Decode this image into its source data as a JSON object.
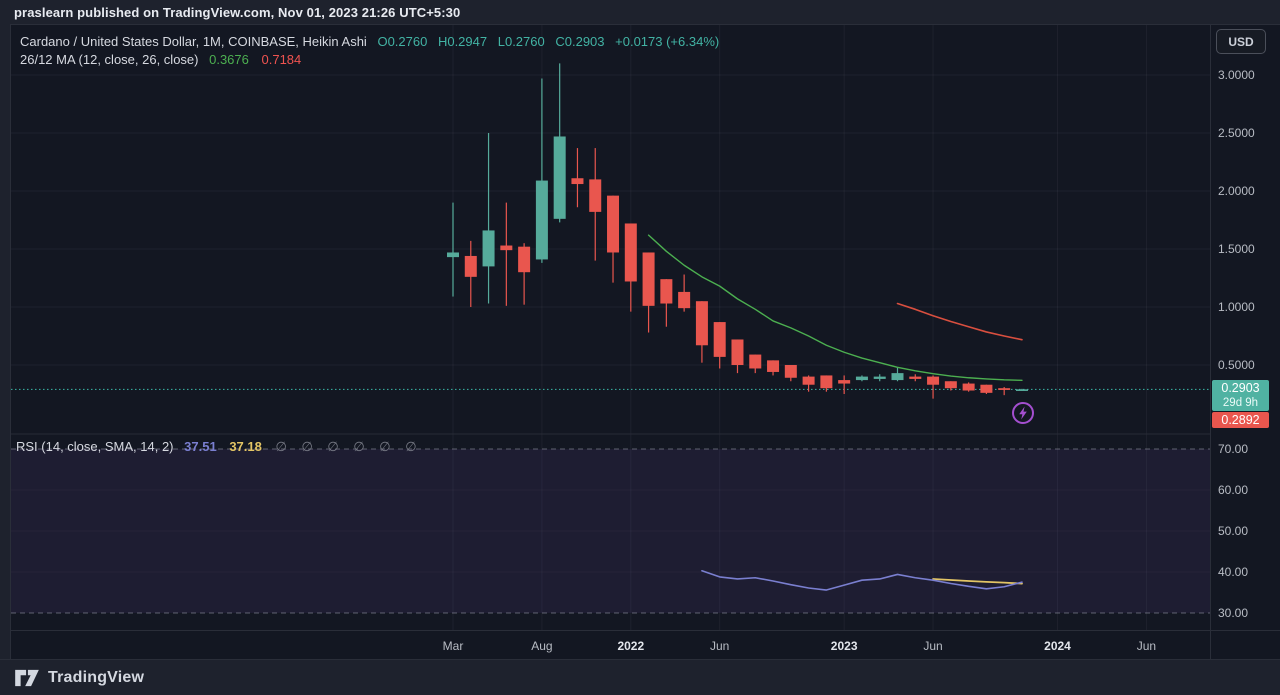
{
  "publish_bar": {
    "text": "praslearn published on TradingView.com, Nov 01, 2023 21:26 UTC+5:30"
  },
  "header": {
    "title": "Cardano / United States Dollar, 1M, COINBASE, Heikin Ashi",
    "ohlc": {
      "open": "O0.2760",
      "high": "H0.2947",
      "low": "L0.2760",
      "close": "C0.2903",
      "change": "+0.0173 (+6.34%)"
    },
    "ma_label": "26/12 MA (12, close, 26, close)",
    "ma_fast_value": "0.3676",
    "ma_slow_value": "0.7184"
  },
  "rsi_header": {
    "label": "RSI (14, close, SMA, 14, 2)",
    "value_main": "37.51",
    "value_signal": "37.18",
    "empty_values": [
      "∅",
      "∅",
      "∅",
      "∅",
      "∅",
      "∅"
    ]
  },
  "price_axis": {
    "currency_button": "USD",
    "ticks": [
      {
        "value": 3.0,
        "label": "3.0000"
      },
      {
        "value": 2.5,
        "label": "2.5000"
      },
      {
        "value": 2.0,
        "label": "2.0000"
      },
      {
        "value": 1.5,
        "label": "1.5000"
      },
      {
        "value": 1.0,
        "label": "1.0000"
      },
      {
        "value": 0.5,
        "label": "0.5000"
      }
    ],
    "last_price_badge": {
      "price": "0.2903",
      "countdown": "29d 9h"
    },
    "secondary_badge": "0.2892"
  },
  "rsi_axis": {
    "ticks": [
      {
        "value": 70,
        "label": "70.00"
      },
      {
        "value": 60,
        "label": "60.00"
      },
      {
        "value": 50,
        "label": "50.00"
      },
      {
        "value": 40,
        "label": "40.00"
      },
      {
        "value": 30,
        "label": "30.00"
      }
    ]
  },
  "footer": {
    "brand": "TradingView"
  },
  "colors": {
    "up": "#56ab9b",
    "down": "#e9564e",
    "ma_fast": "#4caf50",
    "ma_slow": "#d94f3f",
    "rsi": "#7a7fd0",
    "rsi_signal": "#e3c565",
    "price_line": "#3cb9a9",
    "grid": "rgba(240,243,250,0.05)",
    "dashed_level": "rgba(170,174,186,0.5)",
    "rsi_band_fill": "rgba(126,87,194,0.10)",
    "boost_purple": "#a44fd0"
  },
  "chart_data": {
    "type": "candlestick",
    "style": "Heikin Ashi",
    "interval": "1M",
    "title": "Cardano / United States Dollar, 1M, COINBASE, Heikin Ashi",
    "price_pane": {
      "yticks": [
        3.0,
        2.5,
        2.0,
        1.5,
        1.0,
        0.5
      ],
      "ylim_visible": [
        -0.05,
        3.22
      ],
      "last_price": 0.2903,
      "candles": [
        [
          "Mar 2021",
          1.43,
          1.9,
          1.09,
          1.47
        ],
        [
          "Apr 2021",
          1.44,
          1.57,
          1.0,
          1.26
        ],
        [
          "May 2021",
          1.35,
          2.5,
          1.03,
          1.66
        ],
        [
          "Jun 2021",
          1.53,
          1.9,
          1.01,
          1.49
        ],
        [
          "Jul 2021",
          1.52,
          1.55,
          1.02,
          1.3
        ],
        [
          "Aug 2021",
          1.41,
          2.97,
          1.38,
          2.09
        ],
        [
          "Sep 2021",
          1.76,
          3.1,
          1.73,
          2.47
        ],
        [
          "Oct 2021",
          2.11,
          2.37,
          1.86,
          2.06
        ],
        [
          "Nov 2021",
          2.1,
          2.37,
          1.4,
          1.82
        ],
        [
          "Dec 2021",
          1.96,
          1.96,
          1.21,
          1.47
        ],
        [
          "Jan 2022",
          1.72,
          1.72,
          0.96,
          1.22
        ],
        [
          "Feb 2022",
          1.47,
          1.47,
          0.78,
          1.01
        ],
        [
          "Mar 2022",
          1.24,
          1.24,
          0.83,
          1.03
        ],
        [
          "Apr 2022",
          1.13,
          1.28,
          0.96,
          0.99
        ],
        [
          "May 2022",
          1.05,
          1.05,
          0.52,
          0.67
        ],
        [
          "Jun 2022",
          0.87,
          0.87,
          0.47,
          0.57
        ],
        [
          "Jul 2022",
          0.72,
          0.72,
          0.43,
          0.5
        ],
        [
          "Aug 2022",
          0.59,
          0.59,
          0.43,
          0.47
        ],
        [
          "Sep 2022",
          0.54,
          0.54,
          0.41,
          0.44
        ],
        [
          "Oct 2022",
          0.5,
          0.5,
          0.36,
          0.39
        ],
        [
          "Nov 2022",
          0.4,
          0.41,
          0.27,
          0.33
        ],
        [
          "Dec 2022",
          0.41,
          0.41,
          0.27,
          0.3
        ],
        [
          "Jan 2023",
          0.37,
          0.41,
          0.25,
          0.34
        ],
        [
          "Feb 2023",
          0.37,
          0.41,
          0.36,
          0.4
        ],
        [
          "Mar 2023",
          0.38,
          0.42,
          0.36,
          0.4
        ],
        [
          "Apr 2023",
          0.37,
          0.48,
          0.36,
          0.43
        ],
        [
          "May 2023",
          0.4,
          0.42,
          0.36,
          0.38
        ],
        [
          "Jun 2023",
          0.4,
          0.41,
          0.21,
          0.33
        ],
        [
          "Jul 2023",
          0.36,
          0.36,
          0.28,
          0.3
        ],
        [
          "Aug 2023",
          0.34,
          0.35,
          0.27,
          0.28
        ],
        [
          "Sep 2023",
          0.33,
          0.33,
          0.25,
          0.26
        ],
        [
          "Oct 2023",
          0.3,
          0.31,
          0.24,
          0.285
        ],
        [
          "Nov 2023",
          0.276,
          0.2947,
          0.276,
          0.2903
        ]
      ],
      "ma_12": [
        [
          11,
          1.62
        ],
        [
          12,
          1.48
        ],
        [
          13,
          1.36
        ],
        [
          14,
          1.26
        ],
        [
          15,
          1.18
        ],
        [
          16,
          1.07
        ],
        [
          17,
          0.98
        ],
        [
          18,
          0.88
        ],
        [
          19,
          0.82
        ],
        [
          20,
          0.75
        ],
        [
          21,
          0.67
        ],
        [
          22,
          0.61
        ],
        [
          23,
          0.56
        ],
        [
          24,
          0.52
        ],
        [
          25,
          0.48
        ],
        [
          26,
          0.45
        ],
        [
          27,
          0.425
        ],
        [
          28,
          0.405
        ],
        [
          29,
          0.39
        ],
        [
          30,
          0.38
        ],
        [
          31,
          0.372
        ],
        [
          32,
          0.368
        ]
      ],
      "ma_26": [
        [
          25,
          1.03
        ],
        [
          26,
          0.98
        ],
        [
          27,
          0.925
        ],
        [
          28,
          0.875
        ],
        [
          29,
          0.83
        ],
        [
          30,
          0.785
        ],
        [
          31,
          0.75
        ],
        [
          32,
          0.718
        ]
      ]
    },
    "rsi_pane": {
      "yticks": [
        70,
        60,
        50,
        40,
        30
      ],
      "band_levels": [
        70,
        30
      ],
      "rsi": [
        [
          14,
          40.3
        ],
        [
          15,
          38.8
        ],
        [
          16,
          38.3
        ],
        [
          17,
          38.6
        ],
        [
          18,
          37.8
        ],
        [
          19,
          36.9
        ],
        [
          20,
          36.1
        ],
        [
          21,
          35.6
        ],
        [
          22,
          36.8
        ],
        [
          23,
          38.0
        ],
        [
          24,
          38.3
        ],
        [
          25,
          39.4
        ],
        [
          26,
          38.6
        ],
        [
          27,
          38.0
        ],
        [
          28,
          37.2
        ],
        [
          29,
          36.5
        ],
        [
          30,
          35.9
        ],
        [
          31,
          36.4
        ],
        [
          32,
          37.51
        ]
      ],
      "rsi_ma": [
        [
          27,
          38.3
        ],
        [
          28,
          38.05
        ],
        [
          29,
          37.8
        ],
        [
          30,
          37.6
        ],
        [
          31,
          37.4
        ],
        [
          32,
          37.18
        ]
      ]
    },
    "time_ticks": [
      {
        "label": "Mar",
        "i": 0,
        "major": false
      },
      {
        "label": "Aug",
        "i": 5,
        "major": false
      },
      {
        "label": "2022",
        "i": 10,
        "major": true
      },
      {
        "label": "Jun",
        "i": 15,
        "major": false
      },
      {
        "label": "2023",
        "i": 22,
        "major": true
      },
      {
        "label": "Jun",
        "i": 27,
        "major": false
      },
      {
        "label": "2024",
        "i": 34,
        "major": true
      },
      {
        "label": "Jun",
        "i": 39,
        "major": false
      }
    ]
  }
}
